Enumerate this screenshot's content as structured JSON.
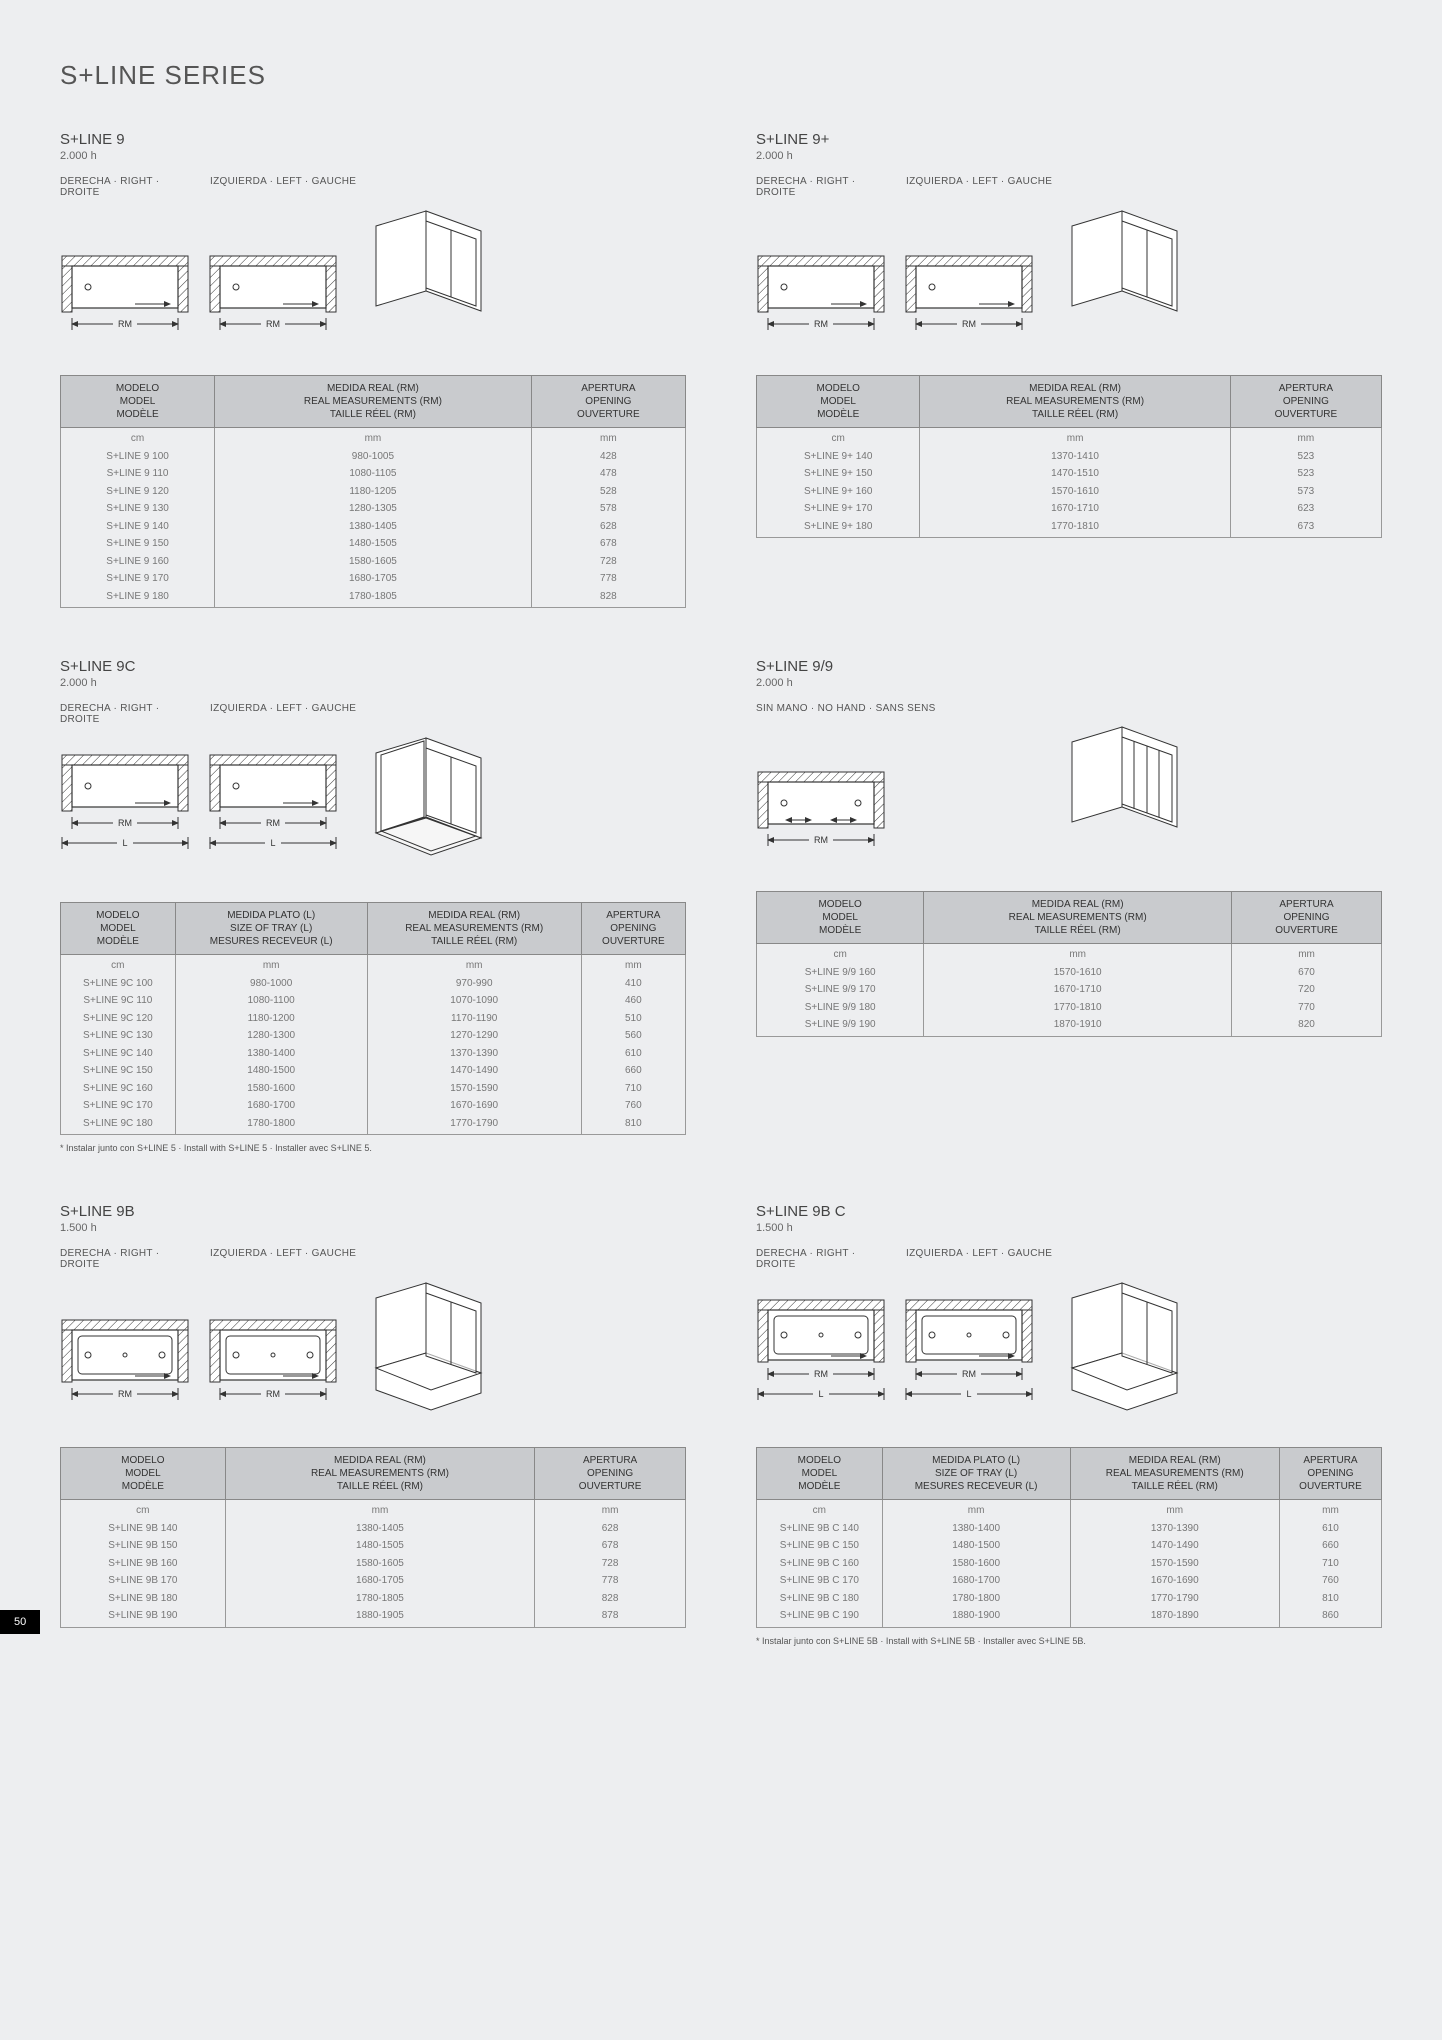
{
  "series_title": "S+LINE SERIES",
  "page_number": "50",
  "labels": {
    "right": "DERECHA · RIGHT · DROITE",
    "left": "IZQUIERDA · LEFT · GAUCHE",
    "nohand": "SIN MANO · NO HAND · SANS SENS",
    "rm": "RM",
    "l": "L"
  },
  "headers": {
    "model": "MODELO\nMODEL\nMODÈLE",
    "tray": "MEDIDA PLATO (L)\nSIZE OF TRAY (L)\nMESURES RECEVEUR (L)",
    "rm": "MEDIDA REAL (RM)\nREAL MEASUREMENTS (RM)\nTAILLE RÉEL (RM)",
    "opening": "APERTURA\nOPENING\nOUVERTURE",
    "cm": "cm",
    "mm": "mm"
  },
  "blocks": {
    "sline9": {
      "name": "S+LINE 9",
      "h": "2.000 h",
      "cols": [
        "model",
        "rm",
        "opening"
      ],
      "rows": [
        [
          "S+LINE 9 100",
          "980-1005",
          "428"
        ],
        [
          "S+LINE 9 110",
          "1080-1105",
          "478"
        ],
        [
          "S+LINE 9 120",
          "1180-1205",
          "528"
        ],
        [
          "S+LINE 9 130",
          "1280-1305",
          "578"
        ],
        [
          "S+LINE 9 140",
          "1380-1405",
          "628"
        ],
        [
          "S+LINE 9 150",
          "1480-1505",
          "678"
        ],
        [
          "S+LINE 9 160",
          "1580-1605",
          "728"
        ],
        [
          "S+LINE 9 170",
          "1680-1705",
          "778"
        ],
        [
          "S+LINE 9 180",
          "1780-1805",
          "828"
        ]
      ]
    },
    "sline9p": {
      "name": "S+LINE 9+",
      "h": "2.000 h",
      "cols": [
        "model",
        "rm",
        "opening"
      ],
      "rows": [
        [
          "S+LINE 9+ 140",
          "1370-1410",
          "523"
        ],
        [
          "S+LINE 9+ 150",
          "1470-1510",
          "523"
        ],
        [
          "S+LINE 9+ 160",
          "1570-1610",
          "573"
        ],
        [
          "S+LINE 9+ 170",
          "1670-1710",
          "623"
        ],
        [
          "S+LINE 9+ 180",
          "1770-1810",
          "673"
        ]
      ]
    },
    "sline9c": {
      "name": "S+LINE 9C",
      "h": "2.000 h",
      "cols": [
        "model",
        "tray",
        "rm",
        "opening"
      ],
      "rows": [
        [
          "S+LINE 9C 100",
          "980-1000",
          "970-990",
          "410"
        ],
        [
          "S+LINE 9C 110",
          "1080-1100",
          "1070-1090",
          "460"
        ],
        [
          "S+LINE 9C 120",
          "1180-1200",
          "1170-1190",
          "510"
        ],
        [
          "S+LINE 9C 130",
          "1280-1300",
          "1270-1290",
          "560"
        ],
        [
          "S+LINE 9C 140",
          "1380-1400",
          "1370-1390",
          "610"
        ],
        [
          "S+LINE 9C 150",
          "1480-1500",
          "1470-1490",
          "660"
        ],
        [
          "S+LINE 9C 160",
          "1580-1600",
          "1570-1590",
          "710"
        ],
        [
          "S+LINE 9C 170",
          "1680-1700",
          "1670-1690",
          "760"
        ],
        [
          "S+LINE 9C 180",
          "1780-1800",
          "1770-1790",
          "810"
        ]
      ],
      "note": "* Instalar junto con S+LINE 5 · Install with S+LINE 5 · Installer avec S+LINE 5."
    },
    "sline99": {
      "name": "S+LINE 9/9",
      "h": "2.000 h",
      "cols": [
        "model",
        "rm",
        "opening"
      ],
      "rows": [
        [
          "S+LINE 9/9 160",
          "1570-1610",
          "670"
        ],
        [
          "S+LINE 9/9 170",
          "1670-1710",
          "720"
        ],
        [
          "S+LINE 9/9 180",
          "1770-1810",
          "770"
        ],
        [
          "S+LINE 9/9 190",
          "1870-1910",
          "820"
        ]
      ]
    },
    "sline9b": {
      "name": "S+LINE 9B",
      "h": "1.500 h",
      "cols": [
        "model",
        "rm",
        "opening"
      ],
      "rows": [
        [
          "S+LINE 9B 140",
          "1380-1405",
          "628"
        ],
        [
          "S+LINE 9B 150",
          "1480-1505",
          "678"
        ],
        [
          "S+LINE 9B 160",
          "1580-1605",
          "728"
        ],
        [
          "S+LINE 9B 170",
          "1680-1705",
          "778"
        ],
        [
          "S+LINE 9B 180",
          "1780-1805",
          "828"
        ],
        [
          "S+LINE 9B 190",
          "1880-1905",
          "878"
        ]
      ]
    },
    "sline9bc": {
      "name": "S+LINE 9B  C",
      "h": "1.500 h",
      "cols": [
        "model",
        "tray",
        "rm",
        "opening"
      ],
      "rows": [
        [
          "S+LINE 9B C 140",
          "1380-1400",
          "1370-1390",
          "610"
        ],
        [
          "S+LINE 9B C 150",
          "1480-1500",
          "1470-1490",
          "660"
        ],
        [
          "S+LINE 9B C 160",
          "1580-1600",
          "1570-1590",
          "710"
        ],
        [
          "S+LINE 9B C 170",
          "1680-1700",
          "1670-1690",
          "760"
        ],
        [
          "S+LINE 9B C 180",
          "1780-1800",
          "1770-1790",
          "810"
        ],
        [
          "S+LINE 9B C 190",
          "1880-1900",
          "1870-1890",
          "860"
        ]
      ],
      "note": "* Instalar junto con S+LINE 5B · Install with S+LINE 5B · Installer avec S+LINE 5B."
    }
  },
  "style": {
    "bg": "#edeef0",
    "header_bg": "#c9cbce",
    "border": "#888888",
    "text": "#333333",
    "muted": "#777777"
  }
}
